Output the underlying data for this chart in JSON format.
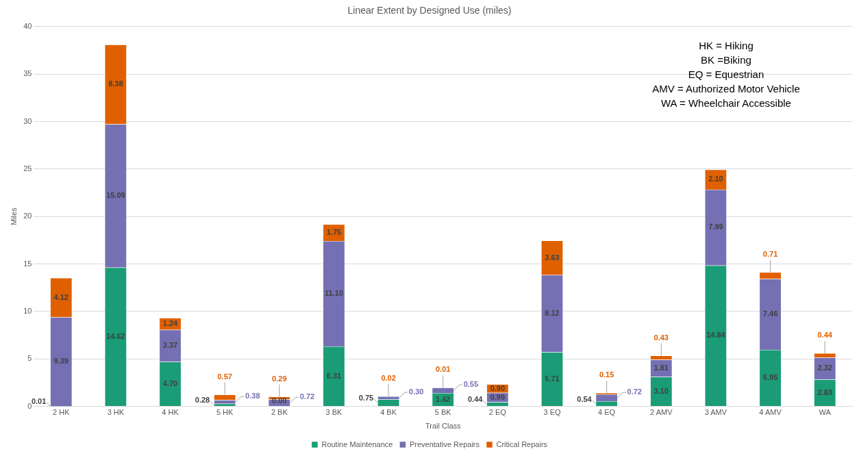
{
  "chart_data": {
    "type": "bar",
    "title": "Linear Extent by Designed Use (miles)",
    "xlabel": "Trail Class",
    "ylabel": "Miles",
    "categories": [
      "2 HK",
      "3 HK",
      "4 HK",
      "5 HK",
      "2 BK",
      "3 BK",
      "4 BK",
      "5 BK",
      "2 EQ",
      "3 EQ",
      "4 EQ",
      "2 AMV",
      "3 AMV",
      "4 AMV",
      "WA"
    ],
    "series": [
      {
        "name": "Routine Maintenance",
        "color": "#1a9c76",
        "values": [
          0.01,
          14.62,
          4.7,
          0.28,
          0.0,
          6.31,
          0.75,
          1.42,
          0.44,
          5.71,
          0.54,
          3.1,
          14.84,
          5.95,
          2.83
        ],
        "value_labels": [
          "0.01",
          "14.62",
          "4.70",
          "0.28",
          "0.00",
          "6.31",
          "0.75",
          "1.42",
          "0.44",
          "5.71",
          "0.54",
          "3.10",
          "14.84",
          "5.95",
          "2.83"
        ]
      },
      {
        "name": "Preventative Repairs",
        "color": "#7570b3",
        "values": [
          9.39,
          15.09,
          3.37,
          0.38,
          0.72,
          11.1,
          0.3,
          0.55,
          0.99,
          8.12,
          0.72,
          1.81,
          7.99,
          7.46,
          2.32
        ],
        "value_labels": [
          "9.39",
          "15.09",
          "3.37",
          "0.38",
          "0.72",
          "11.10",
          "0.30",
          "0.55",
          "0.99",
          "8.12",
          "0.72",
          "1.81",
          "7.99",
          "7.46",
          "2.32"
        ]
      },
      {
        "name": "Critical Repairs",
        "color": "#e06000",
        "values": [
          4.12,
          8.38,
          1.24,
          0.57,
          0.29,
          1.75,
          0.02,
          0.01,
          0.9,
          3.63,
          0.15,
          0.43,
          2.1,
          0.71,
          0.44
        ],
        "value_labels": [
          "4.12",
          "8.38",
          "1.24",
          "0.57",
          "0.29",
          "1.75",
          "0.02",
          "0.01",
          "0.90",
          "3.63",
          "0.15",
          "0.43",
          "2.10",
          "0.71",
          "0.44"
        ]
      }
    ],
    "stacked": true,
    "ylim": [
      0,
      40
    ],
    "yticks": [
      0,
      5,
      10,
      15,
      20,
      25,
      30,
      35,
      40
    ],
    "grid": "y",
    "legend": "bottom",
    "annotations": [
      "HK = Hiking",
      "BK =Biking",
      "EQ = Equestrian",
      "AMV = Authorized Motor Vehicle",
      "WA = Wheelchair Accessible"
    ]
  }
}
